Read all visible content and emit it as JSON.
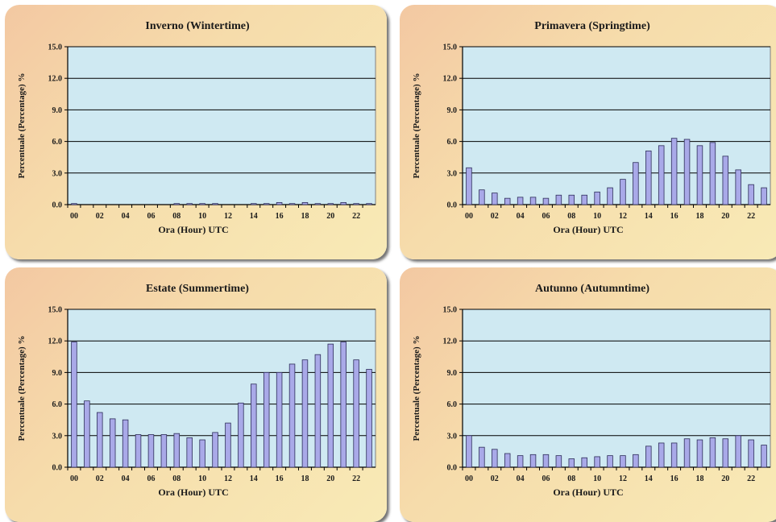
{
  "colors": {
    "plot_bg": "#cfe9f2",
    "bar_fill": "#a9a9e8",
    "bar_stroke": "#2d2d5a",
    "grid": "#000000"
  },
  "shared": {
    "xlabel": "Ora (Hour) UTC",
    "ylabel": "Percentuale (Percentage) %"
  },
  "chart_data": [
    {
      "type": "bar",
      "title": "Inverno (Wintertime)",
      "xlabel": "Ora (Hour) UTC",
      "ylabel": "Percentuale (Percentage) %",
      "categories": [
        "00",
        "01",
        "02",
        "03",
        "04",
        "05",
        "06",
        "07",
        "08",
        "09",
        "10",
        "11",
        "12",
        "13",
        "14",
        "15",
        "16",
        "17",
        "18",
        "19",
        "20",
        "21",
        "22",
        "23"
      ],
      "x_tick_labels": [
        "00",
        "02",
        "04",
        "06",
        "08",
        "10",
        "12",
        "14",
        "16",
        "18",
        "20",
        "22"
      ],
      "y_ticks": [
        "0.0",
        "3.0",
        "6.0",
        "9.0",
        "12.0",
        "15.0"
      ],
      "ylim": [
        0,
        15
      ],
      "values": [
        0.1,
        0,
        0,
        0,
        0,
        0,
        0,
        0,
        0.1,
        0.1,
        0.1,
        0.1,
        0,
        0,
        0.1,
        0.1,
        0.2,
        0.1,
        0.2,
        0.1,
        0.1,
        0.2,
        0.1,
        0.1
      ],
      "grid": "horizontal"
    },
    {
      "type": "bar",
      "title": "Primavera (Springtime)",
      "xlabel": "Ora (Hour) UTC",
      "ylabel": "Percentuale (Percentage) %",
      "categories": [
        "00",
        "01",
        "02",
        "03",
        "04",
        "05",
        "06",
        "07",
        "08",
        "09",
        "10",
        "11",
        "12",
        "13",
        "14",
        "15",
        "16",
        "17",
        "18",
        "19",
        "20",
        "21",
        "22",
        "23"
      ],
      "x_tick_labels": [
        "00",
        "02",
        "04",
        "06",
        "08",
        "10",
        "12",
        "14",
        "16",
        "18",
        "20",
        "22"
      ],
      "y_ticks": [
        "0.0",
        "3.0",
        "6.0",
        "9.0",
        "12.0",
        "15.0"
      ],
      "ylim": [
        0,
        15
      ],
      "values": [
        3.5,
        1.4,
        1.1,
        0.6,
        0.7,
        0.7,
        0.6,
        0.9,
        0.9,
        0.9,
        1.2,
        1.6,
        2.4,
        4.0,
        5.1,
        5.6,
        6.3,
        6.2,
        5.6,
        5.9,
        4.6,
        3.3,
        1.9,
        1.6
      ],
      "grid": "horizontal"
    },
    {
      "type": "bar",
      "title": "Estate (Summertime)",
      "xlabel": "Ora (Hour) UTC",
      "ylabel": "Percentuale (Percentage) %",
      "categories": [
        "00",
        "01",
        "02",
        "03",
        "04",
        "05",
        "06",
        "07",
        "08",
        "09",
        "10",
        "11",
        "12",
        "13",
        "14",
        "15",
        "16",
        "17",
        "18",
        "19",
        "20",
        "21",
        "22",
        "23"
      ],
      "x_tick_labels": [
        "00",
        "02",
        "04",
        "06",
        "08",
        "10",
        "12",
        "14",
        "16",
        "18",
        "20",
        "22"
      ],
      "y_ticks": [
        "0.0",
        "3.0",
        "6.0",
        "9.0",
        "12.0",
        "15.0"
      ],
      "ylim": [
        0,
        15
      ],
      "values": [
        11.9,
        6.3,
        5.2,
        4.6,
        4.5,
        3.1,
        3.1,
        3.1,
        3.2,
        2.8,
        2.6,
        3.3,
        4.2,
        6.1,
        7.9,
        9.0,
        9.0,
        9.8,
        10.2,
        10.7,
        11.7,
        11.9,
        10.2,
        9.3
      ],
      "grid": "horizontal"
    },
    {
      "type": "bar",
      "title": "Autunno (Autumntime)",
      "xlabel": "Ora (Hour) UTC",
      "ylabel": "Percentuale (Percentage) %",
      "categories": [
        "00",
        "01",
        "02",
        "03",
        "04",
        "05",
        "06",
        "07",
        "08",
        "09",
        "10",
        "11",
        "12",
        "13",
        "14",
        "15",
        "16",
        "17",
        "18",
        "19",
        "20",
        "21",
        "22",
        "23"
      ],
      "x_tick_labels": [
        "00",
        "02",
        "04",
        "06",
        "08",
        "10",
        "12",
        "14",
        "16",
        "18",
        "20",
        "22"
      ],
      "y_ticks": [
        "0.0",
        "3.0",
        "6.0",
        "9.0",
        "12.0",
        "15.0"
      ],
      "ylim": [
        0,
        15
      ],
      "values": [
        3.0,
        1.9,
        1.7,
        1.3,
        1.1,
        1.2,
        1.2,
        1.1,
        0.8,
        0.9,
        1.0,
        1.1,
        1.1,
        1.2,
        2.0,
        2.3,
        2.3,
        2.7,
        2.6,
        2.8,
        2.7,
        3.0,
        2.6,
        2.1
      ],
      "grid": "horizontal"
    }
  ]
}
